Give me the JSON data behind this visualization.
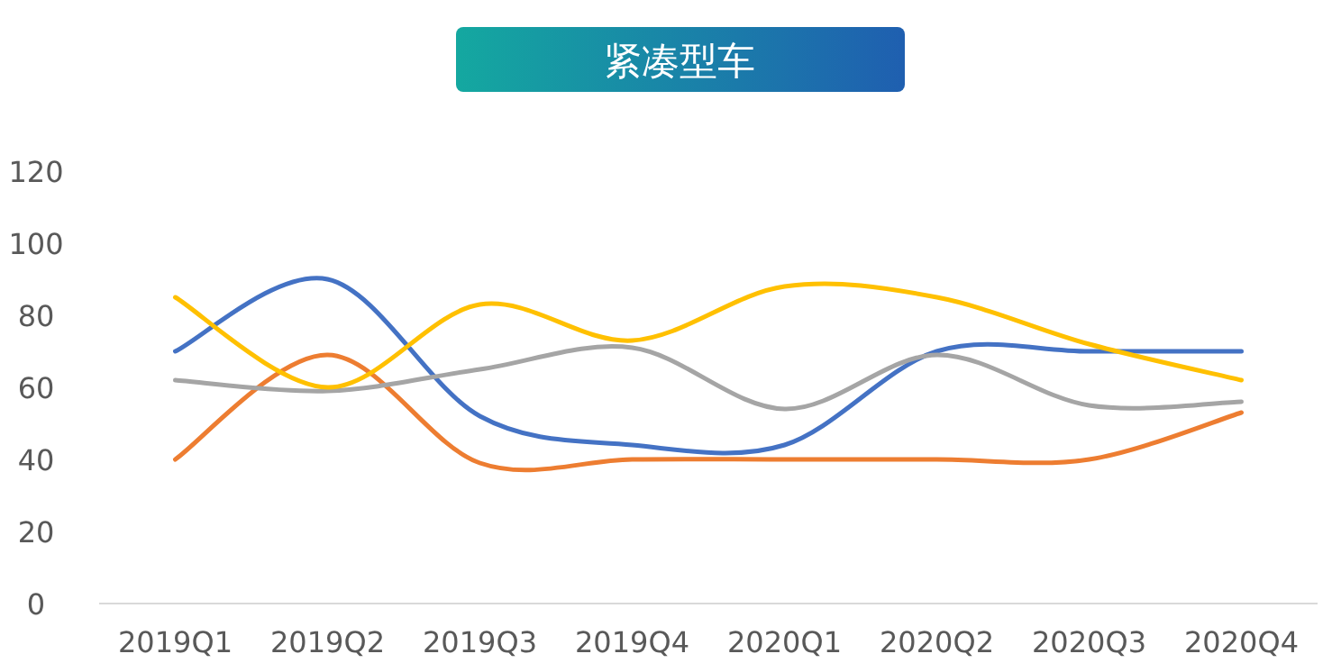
{
  "chart_data": {
    "type": "line",
    "title": "紧凑型车",
    "categories": [
      "2019Q1",
      "2019Q2",
      "2019Q3",
      "2019Q4",
      "2020Q1",
      "2020Q2",
      "2020Q3",
      "2020Q4"
    ],
    "series": [
      {
        "color": "#4472c4",
        "values": [
          70,
          90,
          52,
          44,
          44,
          70,
          70,
          70
        ]
      },
      {
        "color": "#ed7d31",
        "values": [
          40,
          69,
          39,
          40,
          40,
          40,
          40,
          53
        ]
      },
      {
        "color": "#a5a5a5",
        "values": [
          62,
          59,
          65,
          71,
          54,
          69,
          55,
          56
        ]
      },
      {
        "color": "#ffc000",
        "values": [
          85,
          60,
          83,
          73,
          88,
          85,
          72,
          62
        ]
      }
    ],
    "ylim": [
      0,
      120
    ],
    "yticks": [
      0,
      20,
      40,
      60,
      80,
      100,
      120
    ]
  }
}
